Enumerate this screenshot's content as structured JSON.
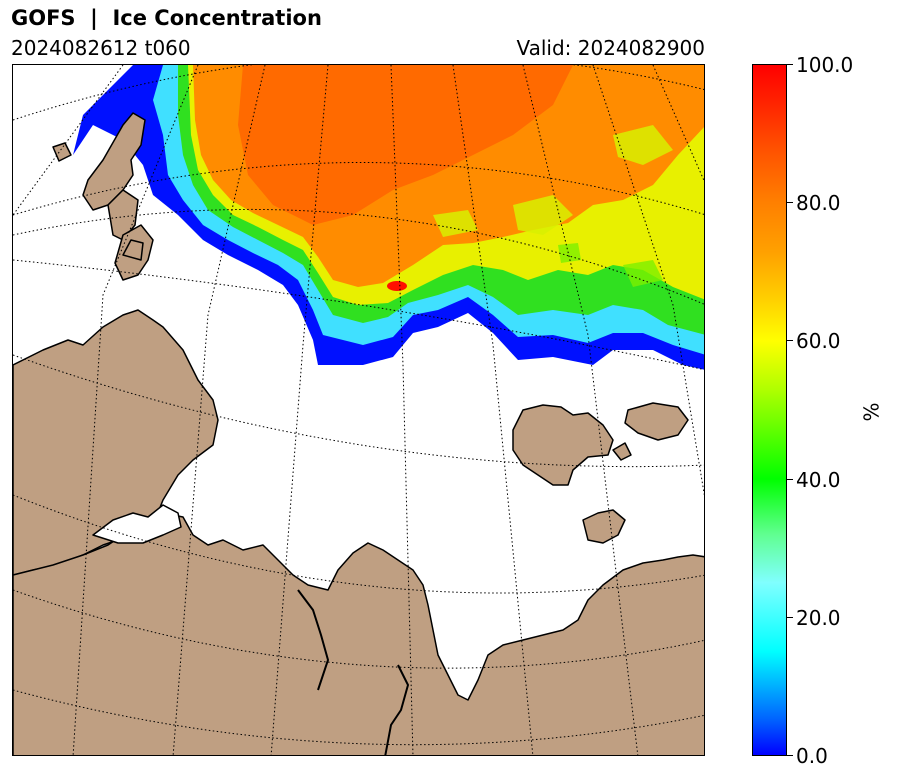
{
  "header": {
    "title": "GOFS  |  Ice Concentration",
    "run": "2024082612 t060",
    "valid": "Valid: 2024082900"
  },
  "map": {
    "land_color": "#bf9f82",
    "ocean_color": "#ffffff",
    "coastline_color": "#000000",
    "graticule_style": "dotted"
  },
  "colorbar": {
    "label": "%",
    "ticks": [
      "0.0",
      "20.0",
      "40.0",
      "60.0",
      "80.0",
      "100.0"
    ],
    "min": 0,
    "max": 100,
    "colors": [
      "#0000ff",
      "#00ffff",
      "#00ff00",
      "#ffff00",
      "#ff8000",
      "#ff0000"
    ]
  }
}
